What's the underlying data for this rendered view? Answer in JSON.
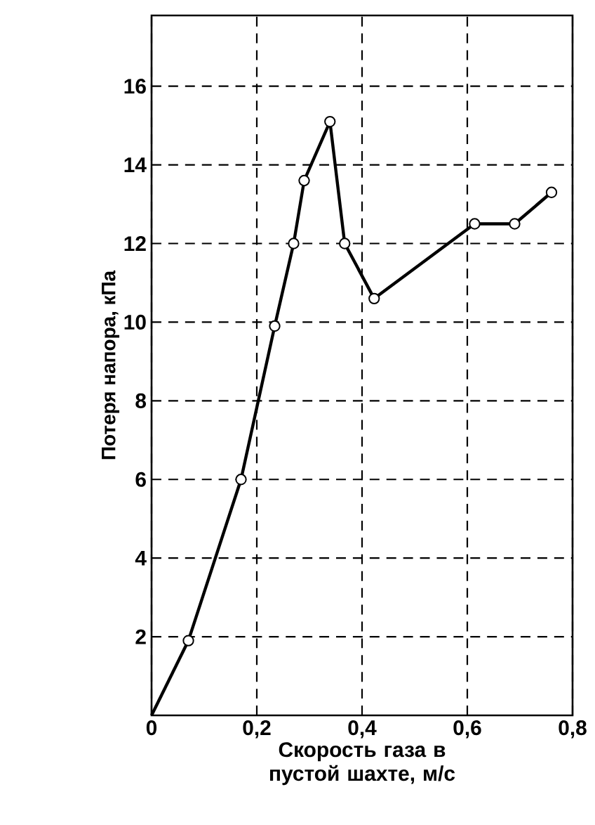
{
  "chart_data": {
    "type": "line",
    "xlabel": "Скорость газа в пустой шахте, м/с",
    "ylabel": "Потеря напора, кПа",
    "series": [
      {
        "color": "#000000",
        "x": [
          0,
          0.07
        ],
        "values": [
          0,
          1.9
        ]
      },
      {
        "color": "#000000",
        "marker": "circle",
        "x": [
          0.07,
          0.17,
          0.234,
          0.27,
          0.29,
          0.339,
          0.367,
          0.423,
          0.614,
          0.69,
          0.76
        ],
        "values": [
          1.9,
          6.0,
          9.9,
          12.0,
          13.6,
          15.1,
          12.0,
          10.6,
          12.5,
          12.5,
          13.3
        ]
      }
    ],
    "xlim": [
      0,
      0.8
    ],
    "ylim": [
      0,
      17.8
    ],
    "xticks": [
      0,
      {
        "value": 0.2,
        "label": "0,2"
      },
      {
        "value": 0.4,
        "label": "0,4"
      },
      {
        "value": 0.6,
        "label": "0,6"
      },
      {
        "value": 0.8,
        "label": "0,8"
      }
    ],
    "yticks": [
      2,
      4,
      6,
      8,
      10,
      12,
      14,
      16
    ],
    "grid": true,
    "line_style": "solid"
  }
}
